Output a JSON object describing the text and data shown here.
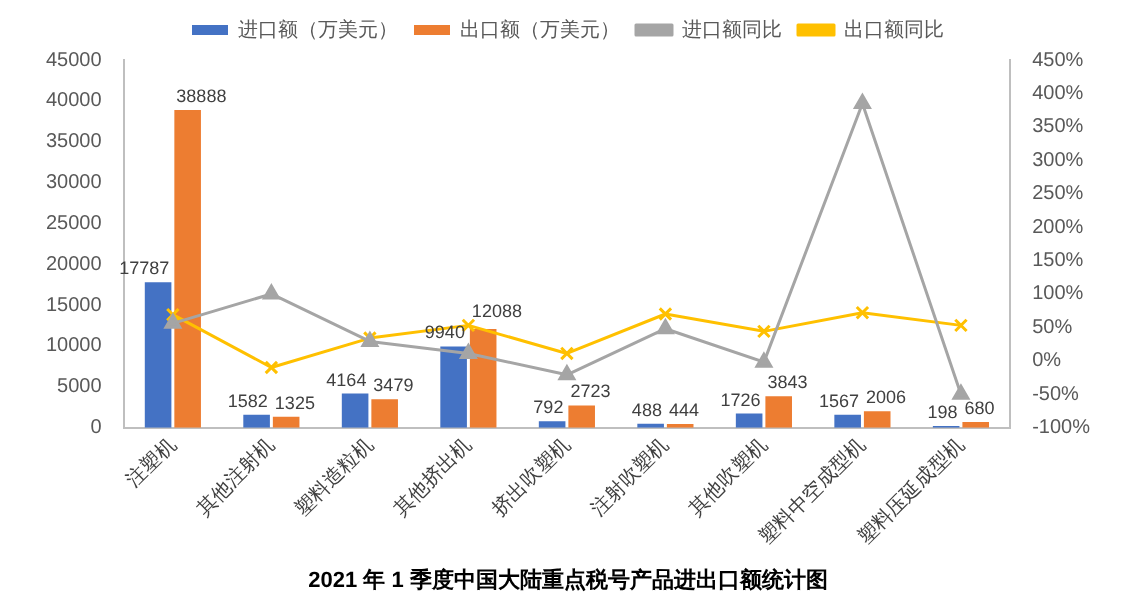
{
  "chart_data": {
    "type": "bar",
    "title": "2021 年 1 季度中国大陆重点税号产品进出口额统计图",
    "categories": [
      "注塑机",
      "其他注射机",
      "塑料造粒机",
      "其他挤出机",
      "挤出吹塑机",
      "注射吹塑机",
      "其他吹塑机",
      "塑料中空成型机",
      "塑料压延成型机"
    ],
    "series": [
      {
        "name": "进口额（万美元）",
        "color": "#4472c4",
        "values": [
          17787,
          1582,
          4164,
          9940,
          792,
          488,
          1726,
          1567,
          198
        ],
        "value_labels": [
          "17787",
          "1582",
          "4164",
          "9940",
          "792",
          "488",
          "1726",
          "1567",
          "198"
        ]
      },
      {
        "name": "出口额（万美元）",
        "color": "#ed7d31",
        "values": [
          38888,
          1325,
          3479,
          12088,
          2723,
          444,
          3843,
          2006,
          680
        ],
        "value_labels": [
          "38888",
          "1325",
          "3479",
          "12088",
          "2723",
          "444",
          "3843",
          "2006",
          "680"
        ]
      },
      {
        "name": "进口额同比",
        "type": "line",
        "axis": "y2",
        "color": "#a5a5a5",
        "marker": "triangle",
        "values": [
          56,
          100,
          29,
          11,
          -21,
          48,
          -2,
          385,
          -50
        ]
      },
      {
        "name": "出口额同比",
        "type": "line",
        "axis": "y2",
        "color": "#ffc000",
        "marker": "cross",
        "values": [
          69,
          -10,
          34,
          53,
          11,
          70,
          44,
          72,
          53
        ]
      }
    ],
    "ylim": [
      0,
      45000
    ],
    "yticks": [
      0,
      5000,
      10000,
      15000,
      20000,
      25000,
      30000,
      35000,
      40000,
      45000
    ],
    "y2lim": [
      -100,
      450
    ],
    "y2ticks": [
      {
        "value": -100,
        "label": "-100%"
      },
      {
        "value": -50,
        "label": "-50%"
      },
      {
        "value": 0,
        "label": "0%"
      },
      {
        "value": 50,
        "label": "50%"
      },
      {
        "value": 100,
        "label": "100%"
      },
      {
        "value": 150,
        "label": "150%"
      },
      {
        "value": 200,
        "label": "200%"
      },
      {
        "value": 250,
        "label": "250%"
      },
      {
        "value": 300,
        "label": "300%"
      },
      {
        "value": 350,
        "label": "350%"
      },
      {
        "value": 400,
        "label": "400%"
      },
      {
        "value": 450,
        "label": "450%"
      }
    ],
    "grid": false,
    "legend": "top"
  }
}
